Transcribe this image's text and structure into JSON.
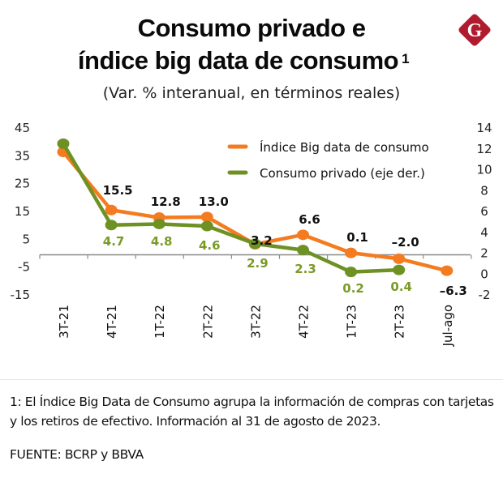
{
  "header": {
    "title_line1": "Consumo privado e",
    "title_line2": "índice big data de consumo",
    "title_footnote_mark": "1",
    "subtitle": "(Var. % interanual, en términos reales)",
    "logo": {
      "icon": "g-diamond-logo-icon",
      "letter": "G",
      "color": "#b01c2e"
    }
  },
  "chart_data": {
    "type": "line",
    "title": "Consumo privado e índice big data de consumo",
    "subtitle": "(Var. % interanual, en términos reales)",
    "categories": [
      "3T-21",
      "4T-21",
      "1T-22",
      "2T-22",
      "3T-22",
      "4T-22",
      "1T-23",
      "2T-23",
      "Jul-ago"
    ],
    "series": [
      {
        "name": "Índice Big data de consumo",
        "axis": "left",
        "color": "#f47b20",
        "values": [
          36.4,
          15.5,
          12.8,
          13.0,
          3.2,
          6.6,
          0.1,
          -2.0,
          -6.3
        ],
        "data_labels": [
          null,
          "15.5",
          "12.8",
          "13.0",
          "3.2",
          "6.6",
          "0.1",
          "-2.0",
          "-6.3"
        ]
      },
      {
        "name": "Consumo privado (eje der.)",
        "axis": "right",
        "color": "#6e9124",
        "values": [
          12.5,
          4.7,
          4.8,
          4.6,
          2.9,
          2.3,
          0.2,
          0.4,
          null
        ],
        "data_labels": [
          null,
          "4.7",
          "4.8",
          "4.6",
          "2.9",
          "2.3",
          "0.2",
          "0.4",
          null
        ]
      }
    ],
    "y_left": {
      "ticks": [
        45,
        35,
        25,
        15,
        5,
        -5,
        -15
      ],
      "range": [
        -15,
        45
      ]
    },
    "y_right": {
      "ticks": [
        14,
        12,
        10,
        8,
        6,
        4,
        2,
        0,
        -2
      ],
      "range": [
        -2,
        14
      ]
    },
    "xlabel": "",
    "ylabel": "",
    "grid": false,
    "legend_position": "top-right",
    "zero_line": "left-axis zero"
  },
  "footer": {
    "note": "1: El Índice Big Data de Consumo agrupa la información de compras con tarjetas y los retiros de efectivo. Información al 31 de agosto de 2023.",
    "source": "FUENTE: BCRP y BBVA"
  }
}
